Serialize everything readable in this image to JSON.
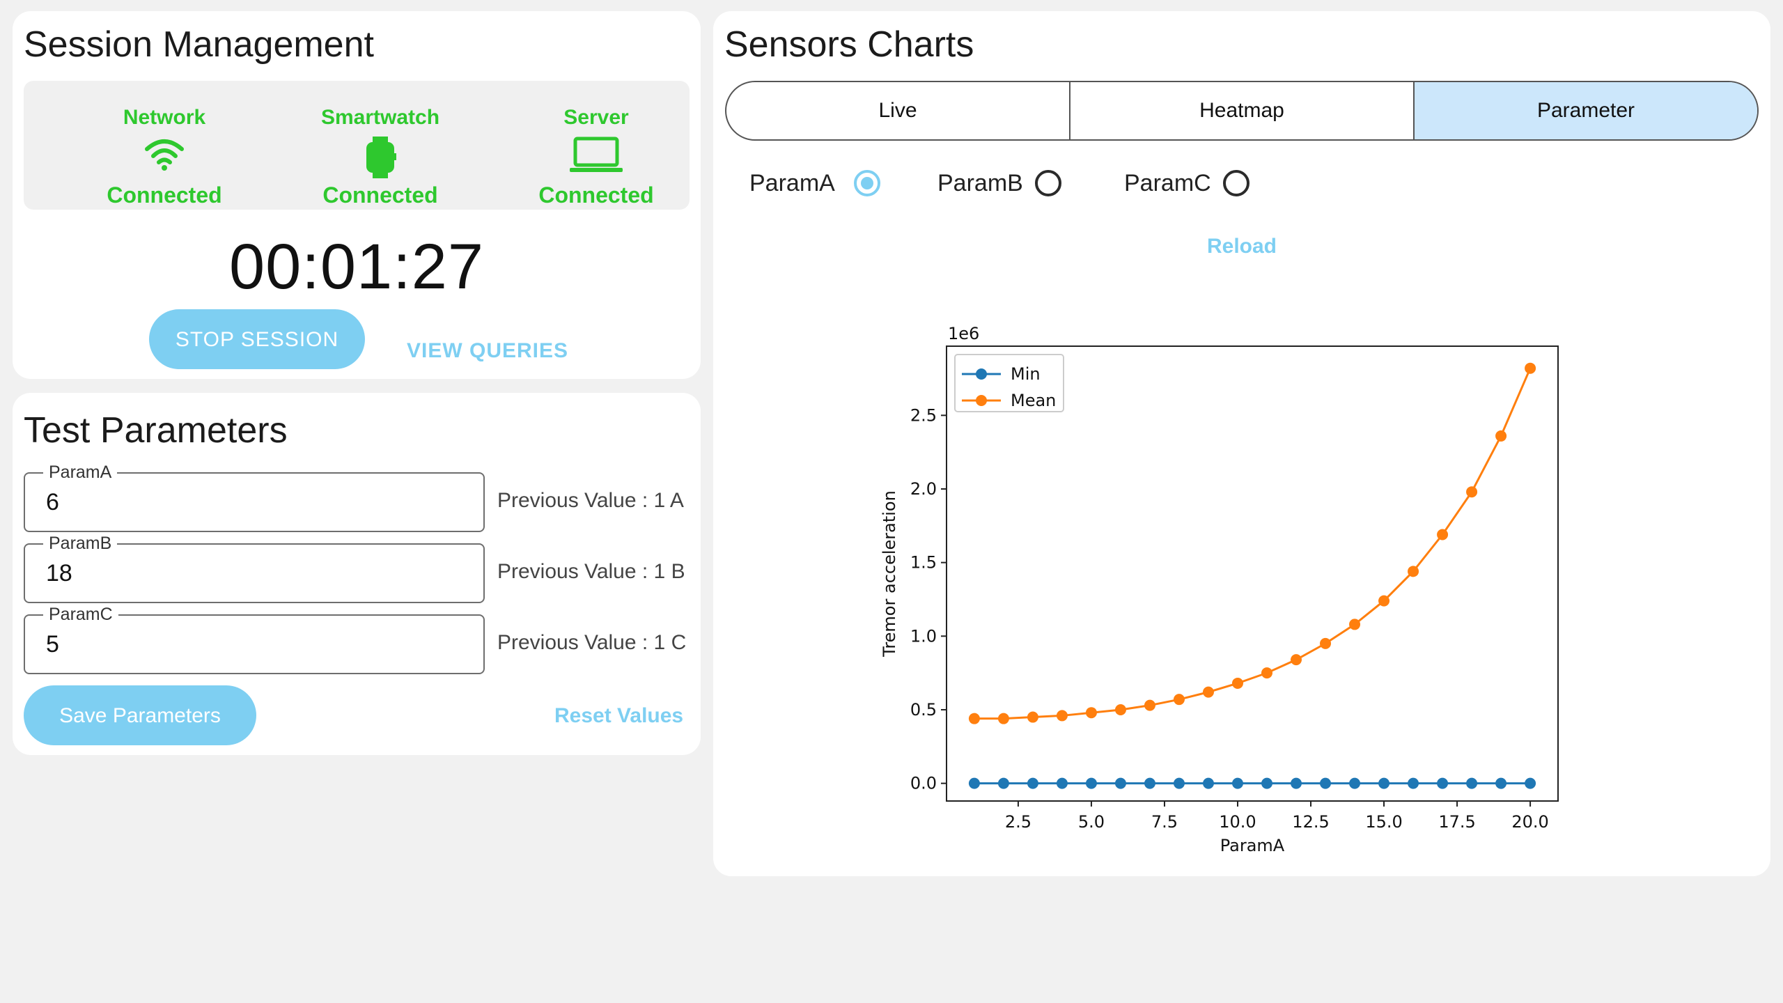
{
  "session": {
    "title": "Session Management",
    "statuses": [
      {
        "name": "Network",
        "state": "Connected",
        "icon": "wifi-icon"
      },
      {
        "name": "Smartwatch",
        "state": "Connected",
        "icon": "smartwatch-icon"
      },
      {
        "name": "Server",
        "state": "Connected",
        "icon": "laptop-icon"
      }
    ],
    "timer": "00:01:27",
    "stop_label": "STOP SESSION",
    "queries_label": "VIEW QUERIES"
  },
  "params": {
    "title": "Test Parameters",
    "fields": [
      {
        "label": "ParamA",
        "value": "6",
        "previous": "Previous Value : 1  A"
      },
      {
        "label": "ParamB",
        "value": "18",
        "previous": "Previous Value : 1  B"
      },
      {
        "label": "ParamC",
        "value": "5",
        "previous": "Previous Value : 1  C"
      }
    ],
    "save_label": "Save Parameters",
    "reset_label": "Reset Values"
  },
  "sensors": {
    "title": "Sensors Charts",
    "tabs": [
      "Live",
      "Heatmap",
      "Parameter"
    ],
    "active_tab": "Parameter",
    "radios": [
      {
        "label": "ParamA",
        "checked": true
      },
      {
        "label": "ParamB",
        "checked": false
      },
      {
        "label": "ParamC",
        "checked": false
      }
    ],
    "reload_label": "Reload"
  },
  "colors": {
    "status_green": "#2ec82e",
    "accent_blue": "#7ecff2",
    "active_tab": "#cce7fb",
    "series_min": "#1f77b4",
    "series_mean": "#ff7f0e"
  },
  "chart_data": {
    "type": "line",
    "xlabel": "ParamA",
    "ylabel": "Tremor acceleration",
    "y_offset_label": "1e6",
    "xlim": [
      0.05,
      20.95
    ],
    "ylim": [
      -0.12,
      2.97
    ],
    "xticks": [
      "2.5",
      "5.0",
      "7.5",
      "10.0",
      "12.5",
      "15.0",
      "17.5",
      "20.0"
    ],
    "yticks": [
      "0.0",
      "0.5",
      "1.0",
      "1.5",
      "2.0",
      "2.5"
    ],
    "legend_position": "top-left",
    "grid": false,
    "x": [
      1,
      2,
      3,
      4,
      5,
      6,
      7,
      8,
      9,
      10,
      11,
      12,
      13,
      14,
      15,
      16,
      17,
      18,
      19,
      20
    ],
    "series": [
      {
        "name": "Min",
        "values": [
          0,
          0,
          0,
          0,
          0,
          0,
          0,
          0,
          0,
          0,
          0,
          0,
          0,
          0,
          0,
          0,
          0,
          0,
          0,
          0
        ]
      },
      {
        "name": "Mean",
        "values": [
          0.44,
          0.44,
          0.45,
          0.46,
          0.48,
          0.5,
          0.53,
          0.57,
          0.62,
          0.68,
          0.75,
          0.84,
          0.95,
          1.08,
          1.24,
          1.44,
          1.69,
          1.98,
          2.36,
          2.82
        ]
      }
    ]
  }
}
